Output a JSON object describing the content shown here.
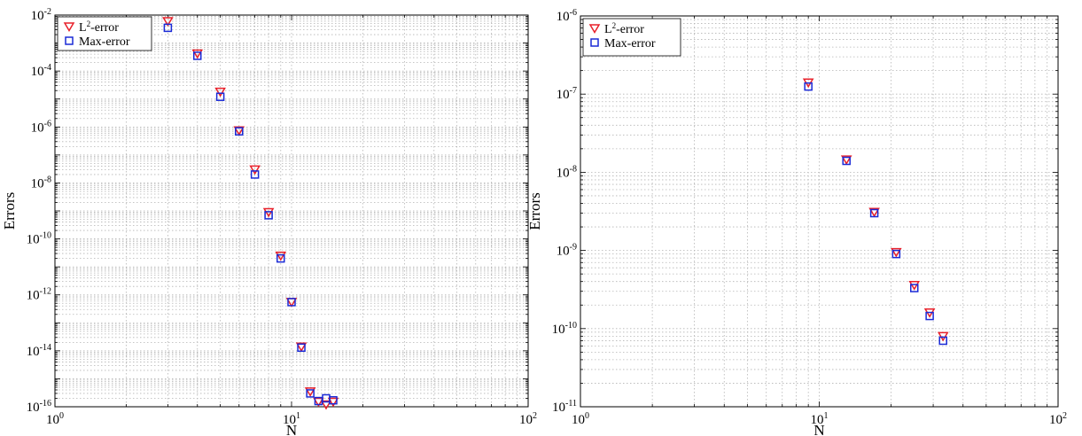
{
  "chart_data": [
    {
      "type": "scatter",
      "xscale": "log",
      "yscale": "log",
      "xlabel": "N",
      "ylabel": "Errors",
      "xlim": [
        1,
        100
      ],
      "ylim": [
        1e-16,
        0.01
      ],
      "x_ticks": [
        {
          "base": "10",
          "exp": "0"
        },
        {
          "base": "10",
          "exp": "1"
        },
        {
          "base": "10",
          "exp": "2"
        }
      ],
      "y_ticks": [
        {
          "base": "10",
          "exp": "-16"
        },
        {
          "base": "10",
          "exp": "-14"
        },
        {
          "base": "10",
          "exp": "-12"
        },
        {
          "base": "10",
          "exp": "-10"
        },
        {
          "base": "10",
          "exp": "-8"
        },
        {
          "base": "10",
          "exp": "-6"
        },
        {
          "base": "10",
          "exp": "-4"
        },
        {
          "base": "10",
          "exp": "-2"
        }
      ],
      "grid": true,
      "legend_position": "top-left",
      "series": [
        {
          "name_base": "L",
          "name_sup": "2",
          "name_rest": "-error",
          "marker": "triangle-down",
          "color": "#e8202a",
          "points": [
            [
              3,
              0.006
            ],
            [
              4,
              0.00042
            ],
            [
              5,
              1.8e-05
            ],
            [
              6,
              7.5e-07
            ],
            [
              7,
              3e-08
            ],
            [
              8,
              9e-10
            ],
            [
              9,
              2.5e-11
            ],
            [
              10,
              5.5e-13
            ],
            [
              11,
              1.4e-14
            ],
            [
              12,
              3.5e-16
            ],
            [
              13,
              1.5e-16
            ],
            [
              14,
              1.2e-16
            ],
            [
              15,
              1.5e-16
            ]
          ]
        },
        {
          "name": "Max-error",
          "marker": "square",
          "color": "#1a2ad6",
          "points": [
            [
              3,
              0.0035
            ],
            [
              4,
              0.00035
            ],
            [
              5,
              1.2e-05
            ],
            [
              6,
              7e-07
            ],
            [
              7,
              2e-08
            ],
            [
              8,
              7e-10
            ],
            [
              9,
              2e-11
            ],
            [
              10,
              5.5e-13
            ],
            [
              11,
              1.3e-14
            ],
            [
              12,
              3e-16
            ],
            [
              13,
              1.6e-16
            ],
            [
              14,
              2e-16
            ],
            [
              15,
              1.7e-16
            ]
          ]
        }
      ]
    },
    {
      "type": "scatter",
      "xscale": "log",
      "yscale": "log",
      "xlabel": "N",
      "ylabel": "Errors",
      "xlim": [
        1,
        100
      ],
      "ylim": [
        1e-11,
        1e-06
      ],
      "x_ticks": [
        {
          "base": "10",
          "exp": "0"
        },
        {
          "base": "10",
          "exp": "1"
        },
        {
          "base": "10",
          "exp": "2"
        }
      ],
      "y_ticks": [
        {
          "base": "10",
          "exp": "-11"
        },
        {
          "base": "10",
          "exp": "-10"
        },
        {
          "base": "10",
          "exp": "-9"
        },
        {
          "base": "10",
          "exp": "-8"
        },
        {
          "base": "10",
          "exp": "-7"
        },
        {
          "base": "10",
          "exp": "-6"
        }
      ],
      "grid": true,
      "legend_position": "top-left",
      "series": [
        {
          "name_base": "L",
          "name_sup": "2",
          "name_rest": "-error",
          "marker": "triangle-down",
          "color": "#e8202a",
          "points": [
            [
              9,
              1.4e-07
            ],
            [
              13,
              1.45e-08
            ],
            [
              17,
              3.1e-09
            ],
            [
              21,
              9.5e-10
            ],
            [
              25,
              3.6e-10
            ],
            [
              29,
              1.6e-10
            ],
            [
              33,
              8e-11
            ]
          ]
        },
        {
          "name": "Max-error",
          "marker": "square",
          "color": "#1a2ad6",
          "points": [
            [
              9,
              1.25e-07
            ],
            [
              13,
              1.4e-08
            ],
            [
              17,
              3e-09
            ],
            [
              21,
              9e-10
            ],
            [
              25,
              3.3e-10
            ],
            [
              29,
              1.45e-10
            ],
            [
              33,
              7e-11
            ]
          ]
        }
      ]
    }
  ]
}
